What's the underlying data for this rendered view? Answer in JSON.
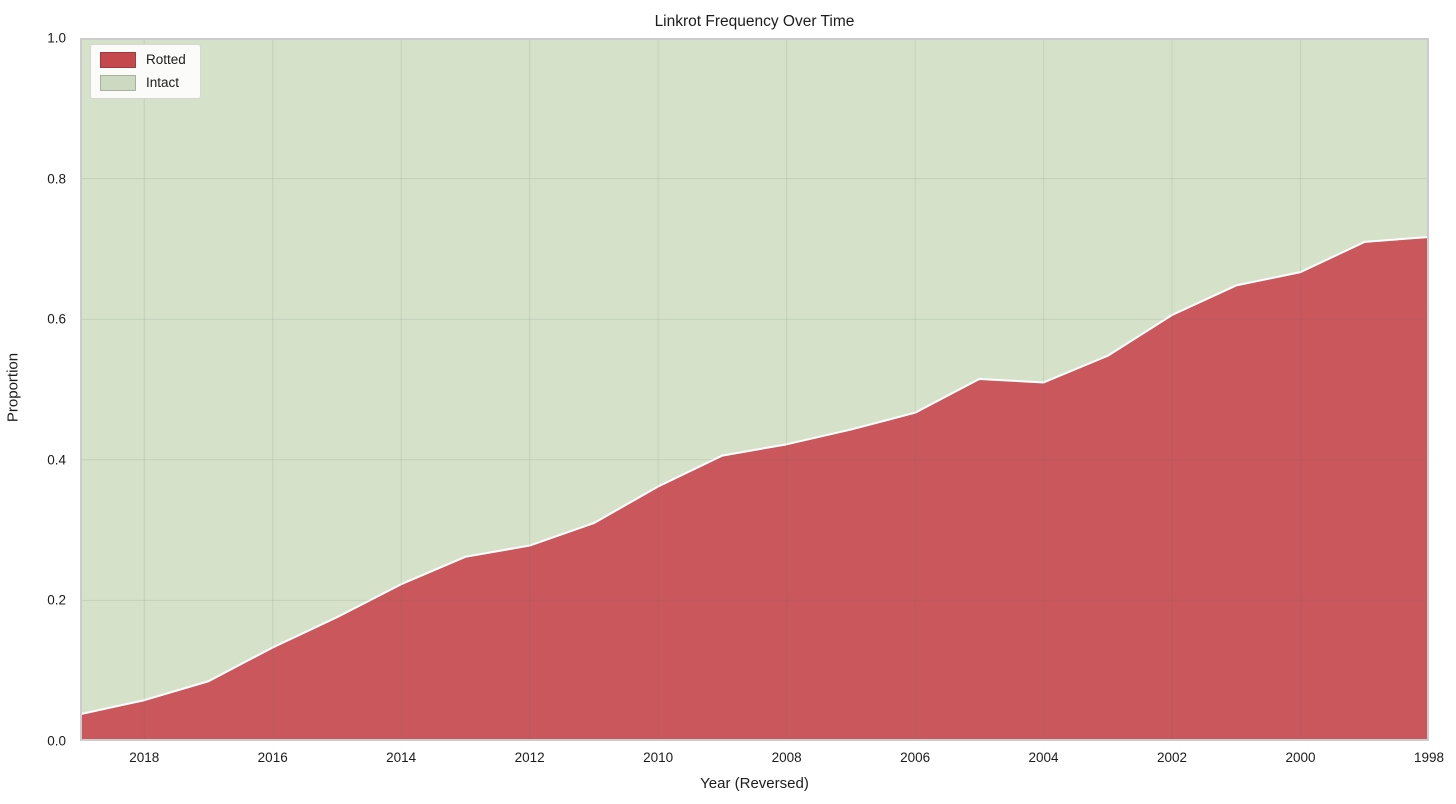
{
  "title": "Linkrot Frequency Over Time",
  "xlabel": "Year (Reversed)",
  "ylabel": "Proportion",
  "legend": {
    "entries": [
      {
        "label": "Rotted",
        "color": "#c4494d"
      },
      {
        "label": "Intact",
        "color": "#ced9c2"
      }
    ],
    "position": "upper left"
  },
  "axes": {
    "x_ticks": [
      2018,
      2016,
      2014,
      2012,
      2010,
      2008,
      2006,
      2004,
      2002,
      2000,
      1998
    ],
    "y_ticks": [
      0.0,
      0.2,
      0.4,
      0.6,
      0.8,
      1.0
    ],
    "x_reversed": true
  },
  "colors": {
    "rotted_fill": "#c9575c",
    "intact_fill": "#d5e2c9",
    "boundary_line": "#ffffff",
    "spine": "#cccccc",
    "grid_line": "#6e6e6e",
    "text": "#202020"
  },
  "chart_data": {
    "type": "area",
    "stacked": true,
    "title": "Linkrot Frequency Over Time",
    "xlabel": "Year (Reversed)",
    "ylabel": "Proportion",
    "x": [
      2019,
      2018,
      2017,
      2016,
      2015,
      2014,
      2013,
      2012,
      2011,
      2010,
      2009,
      2008,
      2007,
      2006,
      2005,
      2004,
      2003,
      2002,
      2001,
      2000,
      1999,
      1998
    ],
    "series": [
      {
        "name": "Rotted",
        "values": [
          0.038,
          0.058,
          0.085,
          0.133,
          0.176,
          0.223,
          0.262,
          0.278,
          0.31,
          0.362,
          0.406,
          0.422,
          0.443,
          0.467,
          0.515,
          0.51,
          0.548,
          0.606,
          0.648,
          0.667,
          0.71,
          0.717
        ]
      },
      {
        "name": "Intact",
        "values": [
          0.962,
          0.942,
          0.915,
          0.867,
          0.824,
          0.777,
          0.738,
          0.722,
          0.69,
          0.638,
          0.594,
          0.578,
          0.557,
          0.533,
          0.485,
          0.49,
          0.452,
          0.394,
          0.352,
          0.333,
          0.29,
          0.283
        ]
      }
    ],
    "xlim": [
      2019,
      1998
    ],
    "ylim": [
      0,
      1
    ],
    "grid": true,
    "legend_position": "upper left"
  }
}
